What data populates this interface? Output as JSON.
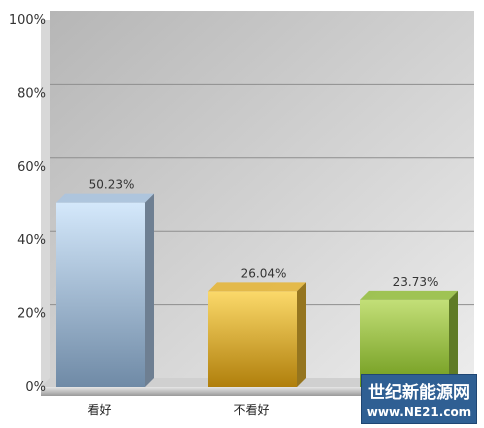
{
  "chart_data": {
    "type": "bar",
    "categories": [
      "看好",
      "不看好",
      ""
    ],
    "values": [
      50.23,
      26.04,
      23.73
    ],
    "data_labels": [
      "50.23%",
      "26.04%",
      "23.73%"
    ],
    "ylim": [
      0,
      100
    ],
    "yticks": [
      0,
      20,
      40,
      60,
      80,
      100
    ],
    "ytick_labels": [
      "0%",
      "20%",
      "40%",
      "60%",
      "80%",
      "100%"
    ],
    "grid": true,
    "colors": [
      "#a9c4e0",
      "#e5b431",
      "#93bd3b"
    ],
    "style": "3d"
  },
  "watermark": {
    "line1": "世纪新能源网",
    "line2": "www.NE21.com"
  }
}
